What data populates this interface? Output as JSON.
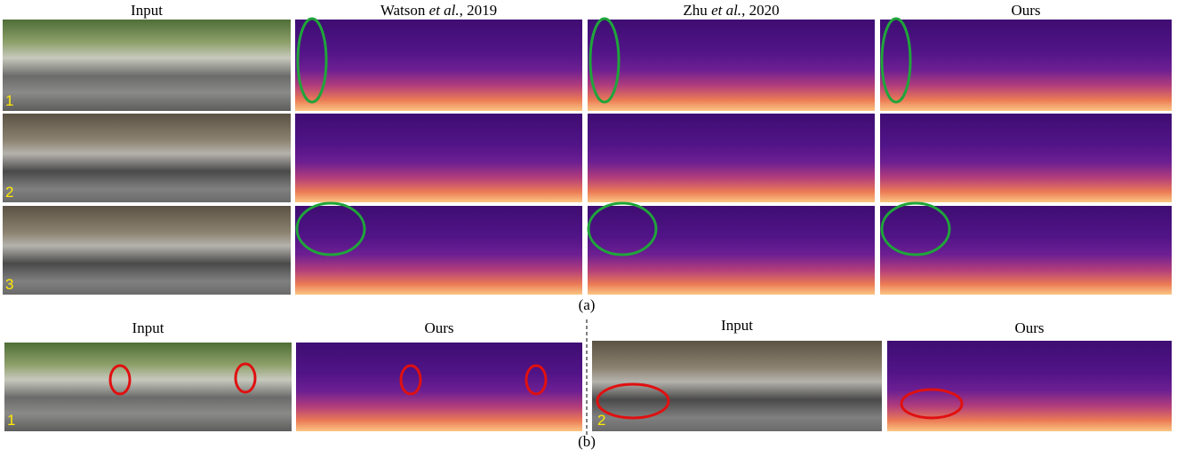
{
  "figure_a": {
    "headers": [
      {
        "name": "Input"
      },
      {
        "name": "Watson",
        "italic": "et al.",
        "rest": ", 2019"
      },
      {
        "name": "Zhu",
        "italic": "et al.",
        "rest": ", 2020"
      },
      {
        "name": "Ours"
      }
    ],
    "row_labels": [
      "1",
      "2",
      "3"
    ],
    "caption": "(a)"
  },
  "figure_b": {
    "headers": [
      "Input",
      "Ours",
      "Input",
      "Ours"
    ],
    "row_labels": [
      "1",
      "2"
    ],
    "caption": "(b)"
  }
}
